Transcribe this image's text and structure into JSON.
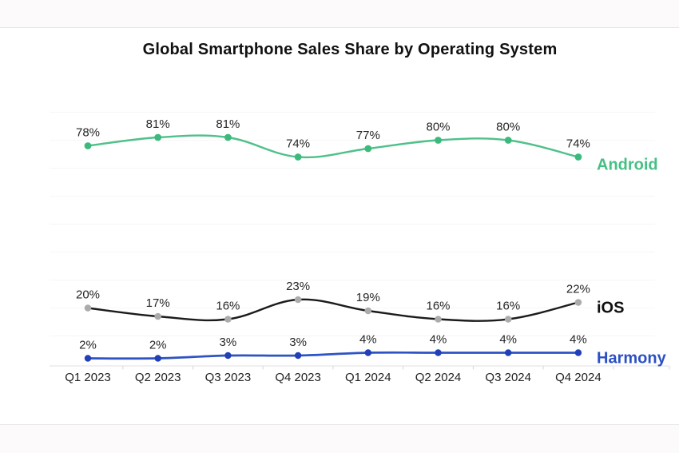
{
  "title": "Global Smartphone Sales Share by Operating System",
  "chart_data": {
    "type": "line",
    "title": "Global Smartphone Sales Share by Operating System",
    "categories": [
      "Q1 2023",
      "Q2 2023",
      "Q3 2023",
      "Q4 2023",
      "Q1 2024",
      "Q2 2024",
      "Q3 2024",
      "Q4 2024"
    ],
    "series": [
      {
        "name": "Android",
        "values": [
          78,
          81,
          81,
          74,
          77,
          80,
          80,
          74
        ],
        "line_color": "#4fc08a",
        "marker_color": "#3cba7c",
        "label_color": "#46c085"
      },
      {
        "name": "iOS",
        "values": [
          20,
          17,
          16,
          23,
          19,
          16,
          16,
          22
        ],
        "line_color": "#1b1b1b",
        "marker_color": "#ababab",
        "label_color": "#101010"
      },
      {
        "name": "Harmony",
        "values": [
          2,
          2,
          3,
          3,
          4,
          4,
          4,
          4
        ],
        "line_color": "#2e53c3",
        "marker_color": "#2140b8",
        "label_color": "#2b50c6"
      }
    ],
    "value_suffix": "%",
    "ylim": [
      0,
      100
    ],
    "grid": "faint-horizontal-10pct",
    "legend_position": "end-of-line",
    "data_labels": "above-points"
  },
  "colors": {
    "background": "#fcfafa",
    "card_background": "#ffffff",
    "card_border": "#e8e5e5",
    "grid_line": "#f8f6f6",
    "axis_line": "#e3e0e0",
    "axis_tick": "#d9d5d6",
    "data_label": "#262626",
    "axis_label": "#1f1f1f",
    "title": "#111111"
  }
}
